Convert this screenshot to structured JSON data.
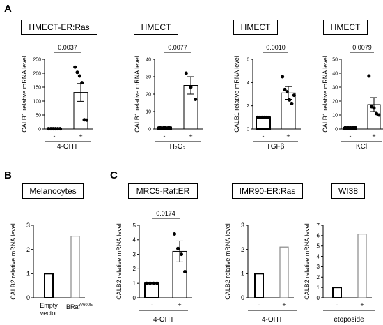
{
  "panels": {
    "A": "A",
    "B": "B",
    "C": "C"
  },
  "chart_data": [
    {
      "type": "bar",
      "title": "HMECT-ER:Ras",
      "ylabel": "CALB1 relative mRNA level",
      "ylim": [
        0,
        250
      ],
      "yticks": [
        0,
        50,
        100,
        150,
        200,
        250
      ],
      "categories": [
        "-",
        "+"
      ],
      "values": [
        1,
        131
      ],
      "errors": [
        0.5,
        32
      ],
      "points": [
        [
          1,
          1,
          1,
          1,
          1,
          1
        ],
        [
          222,
          203,
          190,
          166,
          33,
          32
        ]
      ],
      "xlabel": "4-OHT",
      "pvalue": "0.0037"
    },
    {
      "type": "bar",
      "title": "HMECT",
      "ylabel": "CALB1 relative mRNA level",
      "ylim": [
        0,
        40
      ],
      "yticks": [
        0,
        10,
        20,
        30,
        40
      ],
      "categories": [
        "-",
        "+"
      ],
      "values": [
        1,
        25
      ],
      "errors": [
        0.3,
        5
      ],
      "points": [
        [
          1,
          1,
          1
        ],
        [
          32,
          24,
          17
        ]
      ],
      "xlabel": "H₂O₂",
      "pvalue": "0.0077"
    },
    {
      "type": "bar",
      "title": "HMECT",
      "ylabel": "CALB1 relative mRNA level",
      "ylim": [
        0,
        6
      ],
      "yticks": [
        0,
        2,
        4,
        6
      ],
      "categories": [
        "-",
        "+"
      ],
      "values": [
        1,
        3.1
      ],
      "errors": [
        0.05,
        0.55
      ],
      "points": [
        [
          1,
          1,
          1,
          1,
          1,
          1
        ],
        [
          4.5,
          3.4,
          3.2,
          2.5,
          2.2,
          2.9
        ]
      ],
      "xlabel": "TGFβ",
      "pvalue": "0.0010"
    },
    {
      "type": "bar",
      "title": "HMECT",
      "ylabel": "CALB1 relative mRNA level",
      "ylim": [
        0,
        50
      ],
      "yticks": [
        0,
        10,
        20,
        30,
        40,
        50
      ],
      "categories": [
        "-",
        "+"
      ],
      "values": [
        1,
        17.5
      ],
      "errors": [
        0.3,
        5
      ],
      "points": [
        [
          1,
          1,
          1,
          1,
          1
        ],
        [
          38,
          16,
          15,
          11,
          10
        ]
      ],
      "xlabel": "KCl",
      "pvalue": "0.0079"
    },
    {
      "type": "bar",
      "title": "Melanocytes",
      "ylabel": "CALB2 relative mRNA level",
      "ylim": [
        0,
        3
      ],
      "yticks": [
        0,
        1,
        2,
        3
      ],
      "categories": [
        "Empty vector",
        "BRaf V600E"
      ],
      "values": [
        1,
        2.55
      ],
      "xlabel": ""
    },
    {
      "type": "bar",
      "title": "MRC5-Raf:ER",
      "ylabel": "CALB2 relative mRNA level",
      "ylim": [
        0,
        5
      ],
      "yticks": [
        0,
        1,
        2,
        3,
        4,
        5
      ],
      "categories": [
        "-",
        "+"
      ],
      "values": [
        1,
        3.2
      ],
      "errors": [
        0.03,
        0.72
      ],
      "points": [
        [
          1,
          1,
          1,
          1
        ],
        [
          4.4,
          3.4,
          3.0,
          1.8
        ]
      ],
      "xlabel": "4-OHT",
      "pvalue": "0.0174"
    },
    {
      "type": "bar",
      "title": "IMR90-ER:Ras",
      "ylabel": "CALB2 relative mRNA level",
      "ylim": [
        0,
        3
      ],
      "yticks": [
        0,
        1,
        2,
        3
      ],
      "categories": [
        "-",
        "+"
      ],
      "values": [
        1,
        2.1
      ],
      "xlabel": "4-OHT"
    },
    {
      "type": "bar",
      "title": "WI38",
      "ylabel": "CALB2 relative mRNA level",
      "ylim": [
        0,
        7
      ],
      "yticks": [
        0,
        1,
        2,
        3,
        4,
        5,
        6,
        7
      ],
      "categories": [
        "-",
        "+"
      ],
      "values": [
        1,
        6.15
      ],
      "xlabel": "etoposide"
    }
  ]
}
